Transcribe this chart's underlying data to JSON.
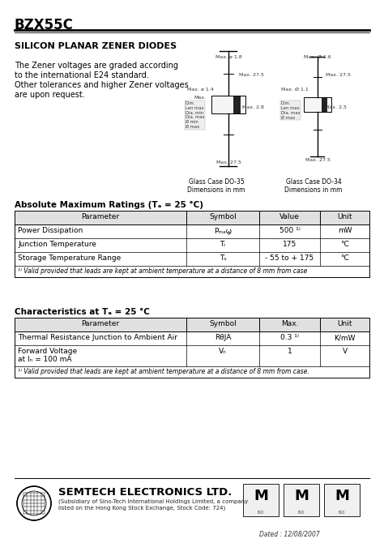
{
  "title": "BZX55C",
  "subtitle": "SILICON PLANAR ZENER DIODES",
  "description_lines": [
    "The Zener voltages are graded according",
    "to the international E24 standard.",
    "Other tolerances and higher Zener voltages",
    "are upon request."
  ],
  "table1_title": "Absolute Maximum Ratings (Tₐ = 25 °C)",
  "table1_headers": [
    "Parameter",
    "Symbol",
    "Value",
    "Unit"
  ],
  "table1_rows": [
    [
      "Power Dissipation",
      "Pₘₐϣ",
      "500 ¹⁾",
      "mW"
    ],
    [
      "Junction Temperature",
      "Tᵢ",
      "175",
      "°C"
    ],
    [
      "Storage Temperature Range",
      "Tₛ",
      "- 55 to + 175",
      "°C"
    ]
  ],
  "table1_footnote": "¹⁾ Valid provided that leads are kept at ambient temperature at a distance of 8 mm from case",
  "table2_title": "Characteristics at Tₐ = 25 °C",
  "table2_headers": [
    "Parameter",
    "Symbol",
    "Max.",
    "Unit"
  ],
  "table2_rows": [
    [
      "Thermal Resistance Junction to Ambient Air",
      "RθJA",
      "0.3 ¹⁾",
      "K/mW"
    ],
    [
      "Forward Voltage\nat Iₙ = 100 mA",
      "Vₙ",
      "1",
      "V"
    ]
  ],
  "table2_footnote": "¹⁾ Valid provided that leads are kept at ambient temperature at a distance of 8 mm from case.",
  "company": "SEMTECH ELECTRONICS LTD.",
  "company_sub1": "(Subsidiary of Sino-Tech International Holdings Limited, a company",
  "company_sub2": "listed on the Hong Kong Stock Exchange, Stock Code: 724)",
  "dated": "Dated : 12/08/2007",
  "bg_color": "#ffffff"
}
